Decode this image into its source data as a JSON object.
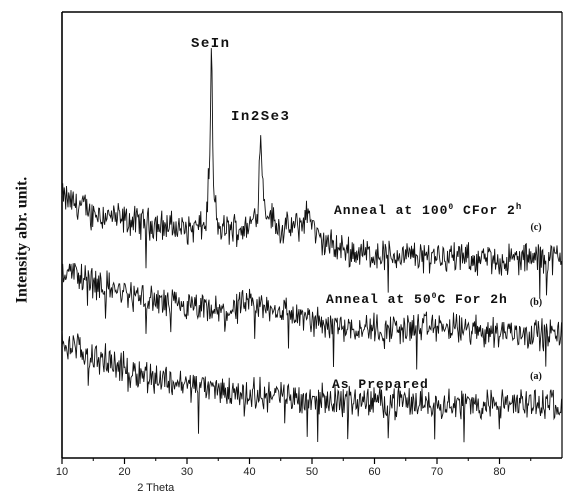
{
  "chart_data": {
    "type": "line",
    "xlabel": "2 Theta",
    "ylabel": "Intensity abr. unit.",
    "xlim": [
      10,
      90
    ],
    "x_ticks": [
      10,
      20,
      30,
      40,
      50,
      60,
      70,
      80
    ],
    "grid": false,
    "series": [
      {
        "name": "(c) Anneal at 100° CFor 2h",
        "tag": "(c)",
        "label": "Anneal at 100",
        "label_tail": " CFor 2",
        "label_sup": "h",
        "x": [
          10,
          15,
          20,
          25,
          30,
          33,
          33.7,
          33.9,
          34.2,
          35,
          40,
          41.3,
          41.8,
          42.4,
          45,
          48,
          49.5,
          51,
          55,
          60,
          65,
          70,
          75,
          80,
          85,
          90
        ],
        "y": [
          2.92,
          2.76,
          2.66,
          2.62,
          2.56,
          2.6,
          3.4,
          4.82,
          3.0,
          2.56,
          2.58,
          2.8,
          3.6,
          2.82,
          2.55,
          2.6,
          2.76,
          2.44,
          2.33,
          2.28,
          2.26,
          2.28,
          2.23,
          2.21,
          2.24,
          2.24
        ]
      },
      {
        "name": "(b) Anneal at 50°C For 2h",
        "tag": "(b)",
        "label": "Anneal at 50",
        "label_tail": "C For 2h",
        "label_sup": "",
        "x": [
          10,
          15,
          20,
          25,
          30,
          35,
          40,
          45,
          50,
          55,
          60,
          65,
          70,
          75,
          80,
          85,
          90
        ],
        "y": [
          2.12,
          1.98,
          1.84,
          1.75,
          1.68,
          1.63,
          1.71,
          1.66,
          1.53,
          1.48,
          1.45,
          1.45,
          1.47,
          1.43,
          1.42,
          1.4,
          1.38
        ]
      },
      {
        "name": "(a) As Prepared",
        "tag": "(a)",
        "label": "As Prepared",
        "label_tail": "",
        "label_sup": "",
        "x": [
          10,
          15,
          20,
          25,
          30,
          35,
          40,
          45,
          50,
          55,
          60,
          65,
          70,
          75,
          80,
          85,
          90
        ],
        "y": [
          1.3,
          1.14,
          1.0,
          0.9,
          0.82,
          0.76,
          0.72,
          0.7,
          0.66,
          0.64,
          0.63,
          0.62,
          0.62,
          0.6,
          0.6,
          0.61,
          0.62
        ]
      }
    ],
    "annotations": [
      {
        "text": "SeIn",
        "x": 33.8
      },
      {
        "text": "In2Se3",
        "x": 41.8
      }
    ]
  }
}
